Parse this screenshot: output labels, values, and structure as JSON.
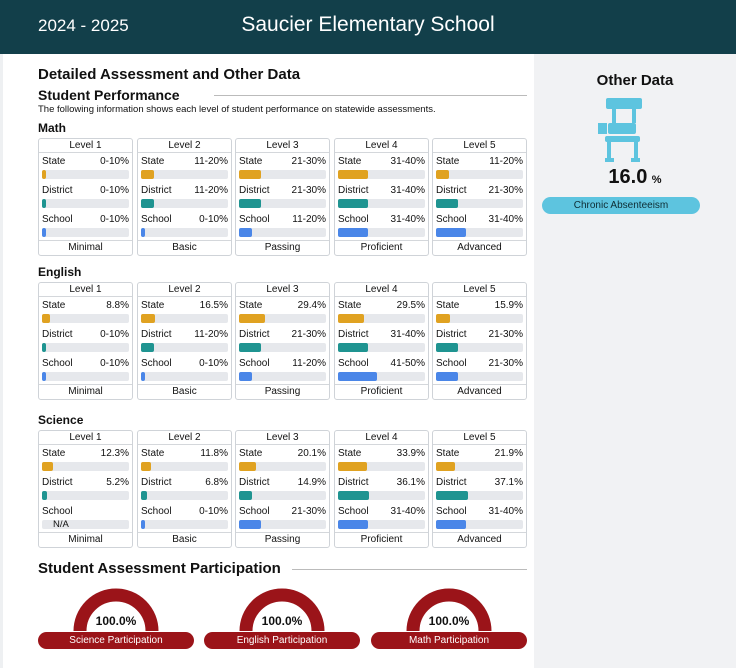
{
  "header": {
    "year": "2024 - 2025",
    "school_name": "Saucier Elementary School"
  },
  "main": {
    "title": "Detailed Assessment and Other Data",
    "subtitle": "Student Performance",
    "description": "The following information shows each level of student performance on statewide assessments."
  },
  "colors": {
    "state": "#e0a221",
    "district": "#1f9491",
    "school": "#4a86e8",
    "header": "#123f4a",
    "participation": "#9b1419",
    "absentee": "#5dc4df"
  },
  "subjects": [
    {
      "name": "Math",
      "levels": [
        {
          "level": "Level 1",
          "footer": "Minimal",
          "rows": [
            {
              "label": "State",
              "value": "0-10%",
              "pct": 5
            },
            {
              "label": "District",
              "value": "0-10%",
              "pct": 5
            },
            {
              "label": "School",
              "value": "0-10%",
              "pct": 5
            }
          ]
        },
        {
          "level": "Level 2",
          "footer": "Basic",
          "rows": [
            {
              "label": "State",
              "value": "11-20%",
              "pct": 15
            },
            {
              "label": "District",
              "value": "11-20%",
              "pct": 15
            },
            {
              "label": "School",
              "value": "0-10%",
              "pct": 5
            }
          ]
        },
        {
          "level": "Level 3",
          "footer": "Passing",
          "rows": [
            {
              "label": "State",
              "value": "21-30%",
              "pct": 25
            },
            {
              "label": "District",
              "value": "21-30%",
              "pct": 25
            },
            {
              "label": "School",
              "value": "11-20%",
              "pct": 15
            }
          ]
        },
        {
          "level": "Level 4",
          "footer": "Proficient",
          "rows": [
            {
              "label": "State",
              "value": "31-40%",
              "pct": 35
            },
            {
              "label": "District",
              "value": "31-40%",
              "pct": 35
            },
            {
              "label": "School",
              "value": "31-40%",
              "pct": 35
            }
          ]
        },
        {
          "level": "Level 5",
          "footer": "Advanced",
          "rows": [
            {
              "label": "State",
              "value": "11-20%",
              "pct": 15
            },
            {
              "label": "District",
              "value": "21-30%",
              "pct": 25
            },
            {
              "label": "School",
              "value": "31-40%",
              "pct": 35
            }
          ]
        }
      ]
    },
    {
      "name": "English",
      "levels": [
        {
          "level": "Level 1",
          "footer": "Minimal",
          "rows": [
            {
              "label": "State",
              "value": "8.8%",
              "pct": 8.8
            },
            {
              "label": "District",
              "value": "0-10%",
              "pct": 5
            },
            {
              "label": "School",
              "value": "0-10%",
              "pct": 5
            }
          ]
        },
        {
          "level": "Level 2",
          "footer": "Basic",
          "rows": [
            {
              "label": "State",
              "value": "16.5%",
              "pct": 16.5
            },
            {
              "label": "District",
              "value": "11-20%",
              "pct": 15
            },
            {
              "label": "School",
              "value": "0-10%",
              "pct": 5
            }
          ]
        },
        {
          "level": "Level 3",
          "footer": "Passing",
          "rows": [
            {
              "label": "State",
              "value": "29.4%",
              "pct": 29.4
            },
            {
              "label": "District",
              "value": "21-30%",
              "pct": 25
            },
            {
              "label": "School",
              "value": "11-20%",
              "pct": 15
            }
          ]
        },
        {
          "level": "Level 4",
          "footer": "Proficient",
          "rows": [
            {
              "label": "State",
              "value": "29.5%",
              "pct": 29.5
            },
            {
              "label": "District",
              "value": "31-40%",
              "pct": 35
            },
            {
              "label": "School",
              "value": "41-50%",
              "pct": 45
            }
          ]
        },
        {
          "level": "Level 5",
          "footer": "Advanced",
          "rows": [
            {
              "label": "State",
              "value": "15.9%",
              "pct": 15.9
            },
            {
              "label": "District",
              "value": "21-30%",
              "pct": 25
            },
            {
              "label": "School",
              "value": "21-30%",
              "pct": 25
            }
          ]
        }
      ]
    },
    {
      "name": "Science",
      "levels": [
        {
          "level": "Level 1",
          "footer": "Minimal",
          "rows": [
            {
              "label": "State",
              "value": "12.3%",
              "pct": 12.3
            },
            {
              "label": "District",
              "value": "5.2%",
              "pct": 5.2
            },
            {
              "label": "School",
              "value": "",
              "na": "N/A"
            }
          ]
        },
        {
          "level": "Level 2",
          "footer": "Basic",
          "rows": [
            {
              "label": "State",
              "value": "11.8%",
              "pct": 11.8
            },
            {
              "label": "District",
              "value": "6.8%",
              "pct": 6.8
            },
            {
              "label": "School",
              "value": "0-10%",
              "pct": 5
            }
          ]
        },
        {
          "level": "Level 3",
          "footer": "Passing",
          "rows": [
            {
              "label": "State",
              "value": "20.1%",
              "pct": 20.1
            },
            {
              "label": "District",
              "value": "14.9%",
              "pct": 14.9
            },
            {
              "label": "School",
              "value": "21-30%",
              "pct": 25
            }
          ]
        },
        {
          "level": "Level 4",
          "footer": "Proficient",
          "rows": [
            {
              "label": "State",
              "value": "33.9%",
              "pct": 33.9
            },
            {
              "label": "District",
              "value": "36.1%",
              "pct": 36.1
            },
            {
              "label": "School",
              "value": "31-40%",
              "pct": 35
            }
          ]
        },
        {
          "level": "Level 5",
          "footer": "Advanced",
          "rows": [
            {
              "label": "State",
              "value": "21.9%",
              "pct": 21.9
            },
            {
              "label": "District",
              "value": "37.1%",
              "pct": 37.1
            },
            {
              "label": "School",
              "value": "31-40%",
              "pct": 35
            }
          ]
        }
      ]
    }
  ],
  "participation": {
    "title": "Student Assessment Participation",
    "gauges": [
      {
        "value": "100.0%",
        "pct": 100,
        "label": "Science Participation"
      },
      {
        "value": "100.0%",
        "pct": 100,
        "label": "English Participation"
      },
      {
        "value": "100.0%",
        "pct": 100,
        "label": "Math Participation"
      }
    ]
  },
  "other_data": {
    "title": "Other Data",
    "icon": "school-desk-icon",
    "value": "16.0",
    "unit": "%",
    "label": "Chronic Absenteeism"
  }
}
